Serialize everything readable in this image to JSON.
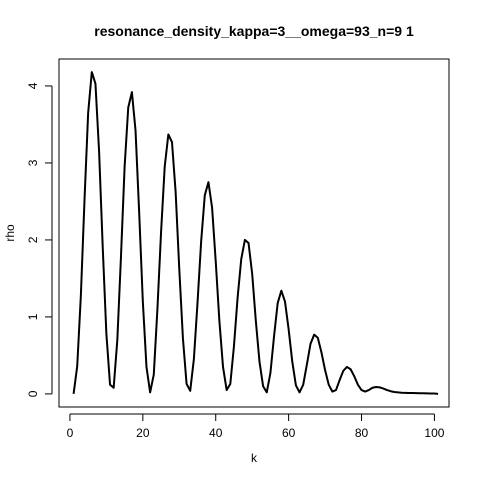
{
  "chart_data": {
    "type": "line",
    "title": "resonance_density_kappa=3__omega=93_n=9 1",
    "xlabel": "k",
    "ylabel": "rho",
    "xlim": [
      -3,
      104
    ],
    "ylim": [
      -0.17,
      4.35
    ],
    "xticks": [
      0,
      20,
      40,
      60,
      80,
      100
    ],
    "yticks": [
      0,
      1,
      2,
      3,
      4
    ],
    "grid": false,
    "legend": "none",
    "line_color": "#000000",
    "series": [
      {
        "x": [
          1,
          2,
          3,
          4,
          5,
          6,
          7,
          8,
          9,
          10,
          11,
          12,
          13,
          14,
          15,
          16,
          17,
          18,
          19,
          20,
          21,
          22,
          23,
          24,
          25,
          26,
          27,
          28,
          29,
          30,
          31,
          32,
          33,
          34,
          35,
          36,
          37,
          38,
          39,
          40,
          41,
          42,
          43,
          44,
          45,
          46,
          47,
          48,
          49,
          50,
          51,
          52,
          53,
          54,
          55,
          56,
          57,
          58,
          59,
          60,
          61,
          62,
          63,
          64,
          65,
          66,
          67,
          68,
          69,
          70,
          71,
          72,
          73,
          74,
          75,
          76,
          77,
          78,
          79,
          80,
          81,
          82,
          83,
          84,
          85,
          86,
          87,
          88,
          89,
          90,
          91,
          92,
          93,
          94,
          95,
          96,
          97,
          98,
          99,
          100,
          101
        ],
        "y": [
          0.0,
          0.36,
          1.28,
          2.52,
          3.65,
          4.18,
          4.03,
          3.15,
          1.9,
          0.78,
          0.12,
          0.08,
          0.7,
          1.78,
          2.95,
          3.72,
          3.92,
          3.42,
          2.35,
          1.2,
          0.35,
          0.02,
          0.25,
          1.1,
          2.1,
          2.95,
          3.37,
          3.27,
          2.62,
          1.62,
          0.72,
          0.13,
          0.04,
          0.45,
          1.18,
          1.98,
          2.58,
          2.75,
          2.42,
          1.72,
          0.95,
          0.35,
          0.05,
          0.13,
          0.62,
          1.25,
          1.75,
          2.0,
          1.96,
          1.56,
          0.95,
          0.42,
          0.1,
          0.02,
          0.27,
          0.75,
          1.18,
          1.34,
          1.2,
          0.84,
          0.42,
          0.11,
          0.02,
          0.12,
          0.38,
          0.65,
          0.77,
          0.73,
          0.54,
          0.31,
          0.12,
          0.03,
          0.05,
          0.18,
          0.3,
          0.35,
          0.32,
          0.23,
          0.12,
          0.05,
          0.03,
          0.05,
          0.08,
          0.09,
          0.085,
          0.07,
          0.05,
          0.035,
          0.025,
          0.02,
          0.015,
          0.013,
          0.012,
          0.011,
          0.01,
          0.009,
          0.008,
          0.007,
          0.006,
          0.005,
          0.0
        ]
      }
    ]
  }
}
